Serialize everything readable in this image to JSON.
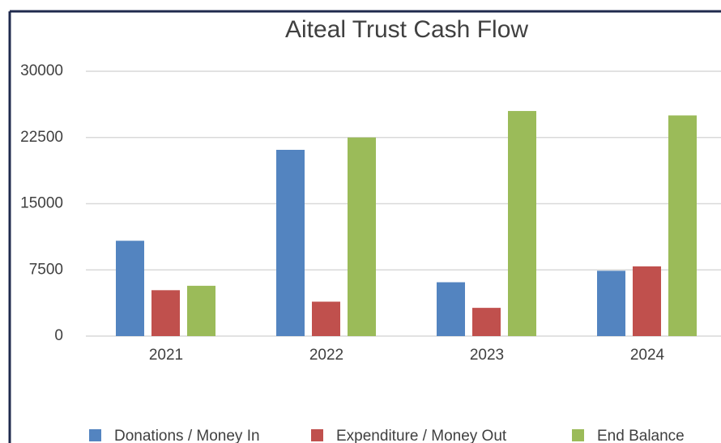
{
  "chart_data": {
    "type": "bar",
    "title": "Aiteal Trust Cash Flow",
    "categories": [
      "2021",
      "2022",
      "2023",
      "2024"
    ],
    "series": [
      {
        "name": "Donations / Money In",
        "color": "#5384c0",
        "values": [
          10800,
          21100,
          6100,
          7400
        ]
      },
      {
        "name": "Expenditure / Money Out",
        "color": "#c0504d",
        "values": [
          5200,
          3900,
          3200,
          7900
        ]
      },
      {
        "name": "End Balance",
        "color": "#9bbb59",
        "values": [
          5700,
          22500,
          25500,
          25000
        ]
      }
    ],
    "ylim": [
      0,
      30000
    ],
    "yticks": [
      0,
      7500,
      15000,
      22500,
      30000
    ],
    "grid": true,
    "legend": "bottom"
  }
}
